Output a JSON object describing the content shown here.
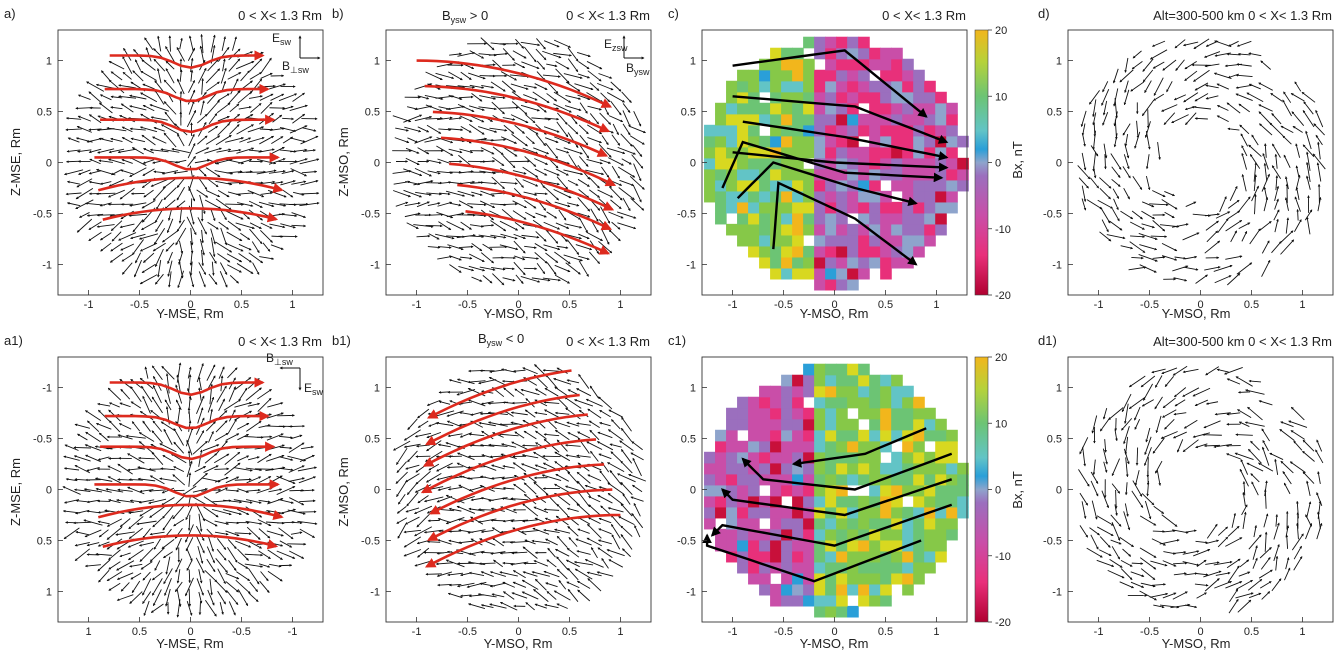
{
  "chart_data": [
    {
      "panel": "a)",
      "type": "vector-field",
      "header": "0 < X< 1.3 Rm",
      "xlabel": "Y-MSE, Rm",
      "ylabel": "Z-MSE, Rm",
      "xlim": [
        -1.3,
        1.3
      ],
      "ylim": [
        -1.3,
        1.3
      ],
      "xticks": [
        "-1",
        "-0.5",
        "0",
        "0.5",
        "1"
      ],
      "yticks": [
        "-1",
        "-0.5",
        "0",
        "0.5",
        "1"
      ],
      "corner_labels": [
        "E",
        "sw",
        "B",
        "⊥sw"
      ],
      "pattern": "diverge"
    },
    {
      "panel": "b)",
      "type": "vector-field",
      "header": "0 < X< 1.3 Rm",
      "condition": [
        "B",
        "ysw",
        " > 0"
      ],
      "xlabel": "Y-MSO, Rm",
      "ylabel": "Z-MSO, Rm",
      "xlim": [
        -1.3,
        1.3
      ],
      "ylim": [
        -1.3,
        1.3
      ],
      "xticks": [
        "-1",
        "-0.5",
        "0",
        "0.5",
        "1"
      ],
      "yticks": [
        "-1",
        "-0.5",
        "0",
        "0.5",
        "1"
      ],
      "corner_labels": [
        "E",
        "zsw",
        "B",
        "ysw"
      ],
      "pattern": "sweep"
    },
    {
      "panel": "c)",
      "type": "heatmap",
      "header": "0 < X< 1.3 Rm",
      "xlabel": "Y-MSO, Rm",
      "ylabel": "",
      "xlim": [
        -1.3,
        1.3
      ],
      "ylim": [
        -1.3,
        1.3
      ],
      "xticks": [
        "-1",
        "-0.5",
        "0",
        "0.5",
        "1"
      ],
      "yticks": [
        "-1",
        "-0.5",
        "0",
        "0.5",
        "1"
      ],
      "colorbar": {
        "label": "Bx, nT",
        "range": [
          -20,
          20
        ],
        "ticks": [
          "20",
          "10",
          "0",
          "-10",
          "-20"
        ]
      },
      "sign_boundary_y": -0.2,
      "polarity": "positive-left"
    },
    {
      "panel": "d)",
      "type": "vector-field",
      "header": "Alt=300-500 km  0 < X< 1.3 Rm",
      "xlabel": "Y-MSO, Rm",
      "ylabel": "",
      "xlim": [
        -1.3,
        1.3
      ],
      "ylim": [
        -1.3,
        1.3
      ],
      "xticks": [
        "-1",
        "-0.5",
        "0",
        "0.5",
        "1"
      ],
      "yticks": [
        "-1",
        "-0.5",
        "0",
        "0.5",
        "1"
      ],
      "pattern": "ring"
    },
    {
      "panel": "a1)",
      "type": "vector-field",
      "header": "0 < X< 1.3 Rm",
      "xlabel": "Y-MSE, Rm",
      "ylabel": "Z-MSE, Rm",
      "xlim": [
        1.3,
        -1.3
      ],
      "ylim": [
        1.3,
        -1.3
      ],
      "xticks": [
        "1",
        "0.5",
        "0",
        "-0.5",
        "-1"
      ],
      "yticks": [
        "-1",
        "-0.5",
        "0",
        "0.5",
        "1"
      ],
      "corner_labels": [
        "B",
        "⊥sw",
        "E",
        "sw"
      ],
      "pattern": "diverge-inv"
    },
    {
      "panel": "b1)",
      "type": "vector-field",
      "header": "0 < X< 1.3 Rm",
      "condition": [
        "B",
        "ysw",
        " < 0"
      ],
      "xlabel": "Y-MSO, Rm",
      "ylabel": "Z-MSO, Rm",
      "xlim": [
        -1.3,
        1.3
      ],
      "ylim": [
        -1.3,
        1.3
      ],
      "xticks": [
        "-1",
        "-0.5",
        "0",
        "0.5",
        "1"
      ],
      "yticks": [
        "-1",
        "-0.5",
        "0",
        "0.5",
        "1"
      ],
      "pattern": "sweep-inv"
    },
    {
      "panel": "c1)",
      "type": "heatmap",
      "header": "",
      "xlabel": "Y-MSO, Rm",
      "ylabel": "",
      "xlim": [
        -1.3,
        1.3
      ],
      "ylim": [
        -1.3,
        1.3
      ],
      "xticks": [
        "-1",
        "-0.5",
        "0",
        "0.5",
        "1"
      ],
      "yticks": [
        "-1",
        "-0.5",
        "0",
        "0.5",
        "1"
      ],
      "colorbar": {
        "label": "Bx, nT",
        "range": [
          -20,
          20
        ],
        "ticks": [
          "20",
          "10",
          "0",
          "-10",
          "-20"
        ]
      },
      "sign_boundary_y": -0.2,
      "polarity": "negative-left"
    },
    {
      "panel": "d1)",
      "type": "vector-field",
      "header": "Alt=300-500 km  0 < X< 1.3 Rm",
      "xlabel": "Y-MSO, Rm",
      "ylabel": "",
      "xlim": [
        -1.3,
        1.3
      ],
      "ylim": [
        -1.3,
        1.3
      ],
      "xticks": [
        "-1",
        "-0.5",
        "0",
        "0.5",
        "1"
      ],
      "yticks": [
        "-1",
        "-0.5",
        "0",
        "0.5",
        "1"
      ],
      "pattern": "ring"
    }
  ],
  "colors": {
    "arrow": "#111111",
    "streamline": "#dd2a1e",
    "flowline": "#000000",
    "colormap": [
      "#c8103a",
      "#e8307a",
      "#c94ea8",
      "#9b6fbe",
      "#8ea4cc",
      "#2a9fd8",
      "#62c4c6",
      "#6cc474",
      "#86c848",
      "#d8d820",
      "#f2b61c"
    ]
  }
}
